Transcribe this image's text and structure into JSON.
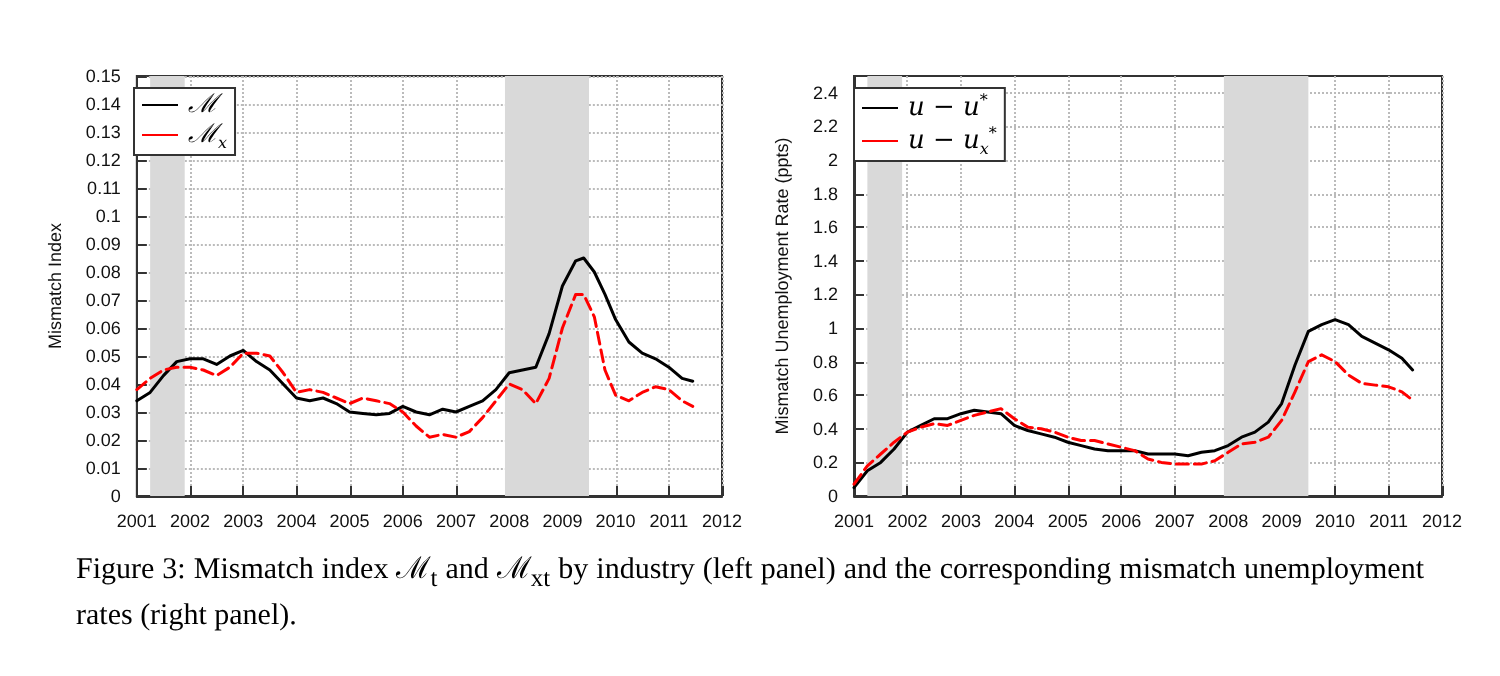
{
  "chart_data": [
    {
      "type": "line",
      "ylabel": "Mismatch Index",
      "xlim": [
        2001,
        2012
      ],
      "xticks": [
        2001,
        2002,
        2003,
        2004,
        2005,
        2006,
        2007,
        2008,
        2009,
        2010,
        2011,
        2012
      ],
      "ylim": [
        0,
        0.15
      ],
      "yticks": [
        0,
        0.01,
        0.02,
        0.03,
        0.04,
        0.05,
        0.06,
        0.07,
        0.08,
        0.09,
        0.1,
        0.11,
        0.12,
        0.13,
        0.14,
        0.15
      ],
      "grid": true,
      "legend": "top left",
      "annotations": [
        "Figure 3: Mismatch index ℳ$_{t}$ and ℳ$_{xt}$ by industry (left panel) and the corresponding mismatch unemployment rates (right panel)."
      ],
      "bands": [
        {
          "axis": "x",
          "from": 2001.25,
          "to": 2001.9,
          "color": "#d9d9d9"
        },
        {
          "axis": "x",
          "from": 2007.92,
          "to": 2009.5,
          "color": "#d9d9d9"
        }
      ],
      "series": [
        {
          "name": "ℳ",
          "color": "#000000",
          "line_style": "solid",
          "x": [
            2001,
            2001.25,
            2001.5,
            2001.75,
            2002,
            2002.25,
            2002.5,
            2002.75,
            2003,
            2003.25,
            2003.5,
            2003.75,
            2004,
            2004.25,
            2004.5,
            2004.75,
            2005,
            2005.25,
            2005.5,
            2005.75,
            2006,
            2006.25,
            2006.5,
            2006.75,
            2007,
            2007.25,
            2007.5,
            2007.75,
            2008,
            2008.25,
            2008.5,
            2008.75,
            2009,
            2009.25,
            2009.4,
            2009.6,
            2009.8,
            2010,
            2010.25,
            2010.5,
            2010.75,
            2011,
            2011.25,
            2011.45
          ],
          "values": [
            0.034,
            0.037,
            0.043,
            0.048,
            0.049,
            0.049,
            0.047,
            0.05,
            0.052,
            0.048,
            0.045,
            0.04,
            0.035,
            0.034,
            0.035,
            0.033,
            0.03,
            0.0295,
            0.029,
            0.0295,
            0.032,
            0.03,
            0.029,
            0.031,
            0.03,
            0.032,
            0.034,
            0.038,
            0.044,
            0.045,
            0.046,
            0.058,
            0.075,
            0.084,
            0.085,
            0.08,
            0.072,
            0.063,
            0.055,
            0.051,
            0.049,
            0.046,
            0.042,
            0.041
          ]
        },
        {
          "name": "ℳ$_{x}$",
          "color": "#ff0000",
          "line_style": "dashed",
          "x": [
            2001,
            2001.25,
            2001.5,
            2001.75,
            2002,
            2002.25,
            2002.5,
            2002.75,
            2003,
            2003.25,
            2003.5,
            2003.75,
            2004,
            2004.25,
            2004.5,
            2004.75,
            2005,
            2005.25,
            2005.5,
            2005.75,
            2006,
            2006.25,
            2006.5,
            2006.75,
            2007,
            2007.25,
            2007.5,
            2007.75,
            2008,
            2008.25,
            2008.5,
            2008.75,
            2009,
            2009.25,
            2009.4,
            2009.6,
            2009.8,
            2010,
            2010.25,
            2010.5,
            2010.75,
            2011,
            2011.25,
            2011.45
          ],
          "values": [
            0.038,
            0.042,
            0.045,
            0.046,
            0.046,
            0.045,
            0.043,
            0.046,
            0.051,
            0.051,
            0.05,
            0.044,
            0.037,
            0.038,
            0.037,
            0.035,
            0.033,
            0.035,
            0.034,
            0.033,
            0.03,
            0.025,
            0.021,
            0.022,
            0.021,
            0.023,
            0.028,
            0.034,
            0.04,
            0.038,
            0.033,
            0.042,
            0.06,
            0.072,
            0.072,
            0.064,
            0.045,
            0.036,
            0.034,
            0.037,
            0.039,
            0.038,
            0.034,
            0.032
          ]
        }
      ]
    },
    {
      "type": "line",
      "ylabel": "Mismatch Unemployment Rate (ppts)",
      "xlim": [
        2001,
        2012
      ],
      "xticks": [
        2001,
        2002,
        2003,
        2004,
        2005,
        2006,
        2007,
        2008,
        2009,
        2010,
        2011,
        2012
      ],
      "ylim": [
        0,
        2.5
      ],
      "yticks": [
        0,
        0.2,
        0.4,
        0.6,
        0.8,
        1,
        1.2,
        1.4,
        1.6,
        1.8,
        2,
        2.2,
        2.4
      ],
      "grid": true,
      "legend": "top left",
      "bands": [
        {
          "axis": "x",
          "from": 2001.25,
          "to": 2001.9,
          "color": "#d9d9d9"
        },
        {
          "axis": "x",
          "from": 2007.92,
          "to": 2009.5,
          "color": "#d9d9d9"
        }
      ],
      "series": [
        {
          "name": "u − u$^{*}$",
          "color": "#000000",
          "line_style": "solid",
          "x": [
            2001,
            2001.25,
            2001.5,
            2001.75,
            2002,
            2002.25,
            2002.5,
            2002.75,
            2003,
            2003.25,
            2003.5,
            2003.75,
            2004,
            2004.25,
            2004.5,
            2004.75,
            2005,
            2005.25,
            2005.5,
            2005.75,
            2006,
            2006.25,
            2006.5,
            2006.75,
            2007,
            2007.25,
            2007.5,
            2007.75,
            2008,
            2008.25,
            2008.5,
            2008.75,
            2009,
            2009.25,
            2009.5,
            2009.75,
            2010,
            2010.25,
            2010.5,
            2010.75,
            2011,
            2011.25,
            2011.45
          ],
          "values": [
            0.05,
            0.15,
            0.2,
            0.28,
            0.38,
            0.42,
            0.46,
            0.46,
            0.49,
            0.51,
            0.5,
            0.49,
            0.42,
            0.39,
            0.37,
            0.35,
            0.32,
            0.3,
            0.28,
            0.27,
            0.27,
            0.27,
            0.25,
            0.25,
            0.25,
            0.24,
            0.26,
            0.27,
            0.3,
            0.35,
            0.38,
            0.44,
            0.55,
            0.78,
            0.98,
            1.02,
            1.05,
            1.02,
            0.95,
            0.91,
            0.87,
            0.82,
            0.75
          ]
        },
        {
          "name": "u − u$_{x}$$^{*}$",
          "color": "#ff0000",
          "line_style": "dashed",
          "x": [
            2001,
            2001.25,
            2001.5,
            2001.75,
            2002,
            2002.25,
            2002.5,
            2002.75,
            2003,
            2003.25,
            2003.5,
            2003.75,
            2004,
            2004.25,
            2004.5,
            2004.75,
            2005,
            2005.25,
            2005.5,
            2005.75,
            2006,
            2006.25,
            2006.5,
            2006.75,
            2007,
            2007.25,
            2007.5,
            2007.75,
            2008,
            2008.25,
            2008.5,
            2008.75,
            2009,
            2009.25,
            2009.5,
            2009.75,
            2010,
            2010.25,
            2010.5,
            2010.75,
            2011,
            2011.25,
            2011.45
          ],
          "values": [
            0.07,
            0.18,
            0.25,
            0.32,
            0.38,
            0.41,
            0.43,
            0.42,
            0.45,
            0.48,
            0.5,
            0.52,
            0.46,
            0.41,
            0.4,
            0.38,
            0.35,
            0.33,
            0.33,
            0.31,
            0.29,
            0.27,
            0.22,
            0.2,
            0.19,
            0.19,
            0.19,
            0.21,
            0.26,
            0.31,
            0.32,
            0.35,
            0.45,
            0.62,
            0.8,
            0.84,
            0.8,
            0.72,
            0.67,
            0.66,
            0.65,
            0.62,
            0.57
          ]
        }
      ]
    }
  ]
}
